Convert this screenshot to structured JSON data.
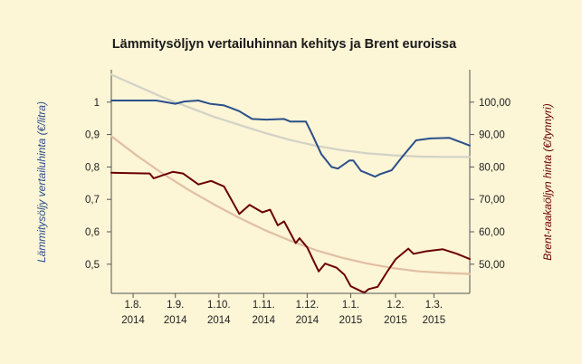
{
  "chart_data": {
    "type": "line",
    "title": "Lämmitysöljyn vertailuhinnan kehitys ja Brent euroissa",
    "ylabel": "Lämmitysöljy vertailuhinta (€/litra)",
    "y2label": "Brent-raakaöljyn hinta (€/tynnyri)",
    "ylim": [
      0.41,
      1.1
    ],
    "y2lim": [
      41,
      110
    ],
    "yticks": [
      "1",
      "0,9",
      "0,8",
      "0,7",
      "0,6",
      "0,5"
    ],
    "y2ticks": [
      "100,00",
      "90,00",
      "80,00",
      "70,00",
      "60,00",
      "50,00"
    ],
    "xlim": [
      0,
      280
    ],
    "xtick_labels": [
      {
        "x": 17,
        "line1": "1.8.",
        "line2": "2014"
      },
      {
        "x": 50,
        "line1": "1.9.",
        "line2": "2014"
      },
      {
        "x": 84,
        "line1": "1.10.",
        "line2": "2014"
      },
      {
        "x": 119,
        "line1": "1.11.",
        "line2": "2014"
      },
      {
        "x": 153,
        "line1": "1.12.",
        "line2": "2014"
      },
      {
        "x": 187,
        "line1": "1.1.",
        "line2": "2015"
      },
      {
        "x": 222,
        "line1": "1.2.",
        "line2": "2015"
      },
      {
        "x": 252,
        "line1": "1.3.",
        "line2": "2015"
      }
    ],
    "series": [
      {
        "axis": "left",
        "color": "#2a4f8a",
        "points": [
          [
            0,
            1.005
          ],
          [
            35,
            1.005
          ],
          [
            50,
            0.995
          ],
          [
            57,
            1.002
          ],
          [
            68,
            1.005
          ],
          [
            77,
            0.995
          ],
          [
            88,
            0.99
          ],
          [
            100,
            0.972
          ],
          [
            110,
            0.948
          ],
          [
            121,
            0.946
          ],
          [
            135,
            0.948
          ],
          [
            140,
            0.94
          ],
          [
            152,
            0.94
          ],
          [
            157,
            0.9
          ],
          [
            164,
            0.84
          ],
          [
            172,
            0.8
          ],
          [
            177,
            0.795
          ],
          [
            186,
            0.82
          ],
          [
            189,
            0.82
          ],
          [
            195,
            0.788
          ],
          [
            200,
            0.78
          ],
          [
            206,
            0.77
          ],
          [
            210,
            0.778
          ],
          [
            219,
            0.79
          ],
          [
            227,
            0.83
          ],
          [
            238,
            0.882
          ],
          [
            249,
            0.888
          ],
          [
            264,
            0.89
          ],
          [
            280,
            0.866
          ]
        ]
      },
      {
        "axis": "right",
        "color": "#6b0000",
        "points": [
          [
            0,
            78.2
          ],
          [
            30,
            78
          ],
          [
            33,
            76.5
          ],
          [
            48,
            78.5
          ],
          [
            56,
            78
          ],
          [
            68,
            74.6
          ],
          [
            78,
            75.7
          ],
          [
            88,
            74
          ],
          [
            100,
            65.5
          ],
          [
            108,
            68.3
          ],
          [
            118,
            66
          ],
          [
            124,
            66.8
          ],
          [
            130,
            62
          ],
          [
            135,
            63.2
          ],
          [
            144,
            56.5
          ],
          [
            147,
            58
          ],
          [
            153,
            55.2
          ],
          [
            159,
            50.2
          ],
          [
            162,
            47.8
          ],
          [
            167,
            50.2
          ],
          [
            176,
            48.9
          ],
          [
            182,
            46.8
          ],
          [
            187,
            43.2
          ],
          [
            196,
            41.5
          ],
          [
            198,
            41.3
          ],
          [
            201,
            42.3
          ],
          [
            208,
            43
          ],
          [
            216,
            48
          ],
          [
            222,
            51.5
          ],
          [
            232,
            54.8
          ],
          [
            236,
            53.2
          ],
          [
            246,
            54
          ],
          [
            259,
            54.6
          ],
          [
            270,
            53.2
          ],
          [
            280,
            51.6
          ]
        ]
      },
      {
        "axis": "left",
        "color": "#d2d2c6",
        "points": [
          [
            0,
            1.085
          ],
          [
            20,
            1.05
          ],
          [
            40,
            1.015
          ],
          [
            60,
            0.985
          ],
          [
            80,
            0.955
          ],
          [
            100,
            0.93
          ],
          [
            120,
            0.905
          ],
          [
            140,
            0.883
          ],
          [
            160,
            0.865
          ],
          [
            180,
            0.852
          ],
          [
            200,
            0.842
          ],
          [
            220,
            0.836
          ],
          [
            240,
            0.832
          ],
          [
            260,
            0.831
          ],
          [
            280,
            0.831
          ]
        ]
      },
      {
        "axis": "right",
        "color": "#e1bfa3",
        "points": [
          [
            0,
            89.5
          ],
          [
            20,
            83.5
          ],
          [
            40,
            78
          ],
          [
            60,
            73
          ],
          [
            80,
            68.5
          ],
          [
            100,
            64.3
          ],
          [
            120,
            60.5
          ],
          [
            140,
            57.2
          ],
          [
            160,
            54.3
          ],
          [
            180,
            52
          ],
          [
            200,
            50.2
          ],
          [
            220,
            48.8
          ],
          [
            240,
            47.8
          ],
          [
            260,
            47.3
          ],
          [
            280,
            47
          ]
        ]
      }
    ]
  }
}
